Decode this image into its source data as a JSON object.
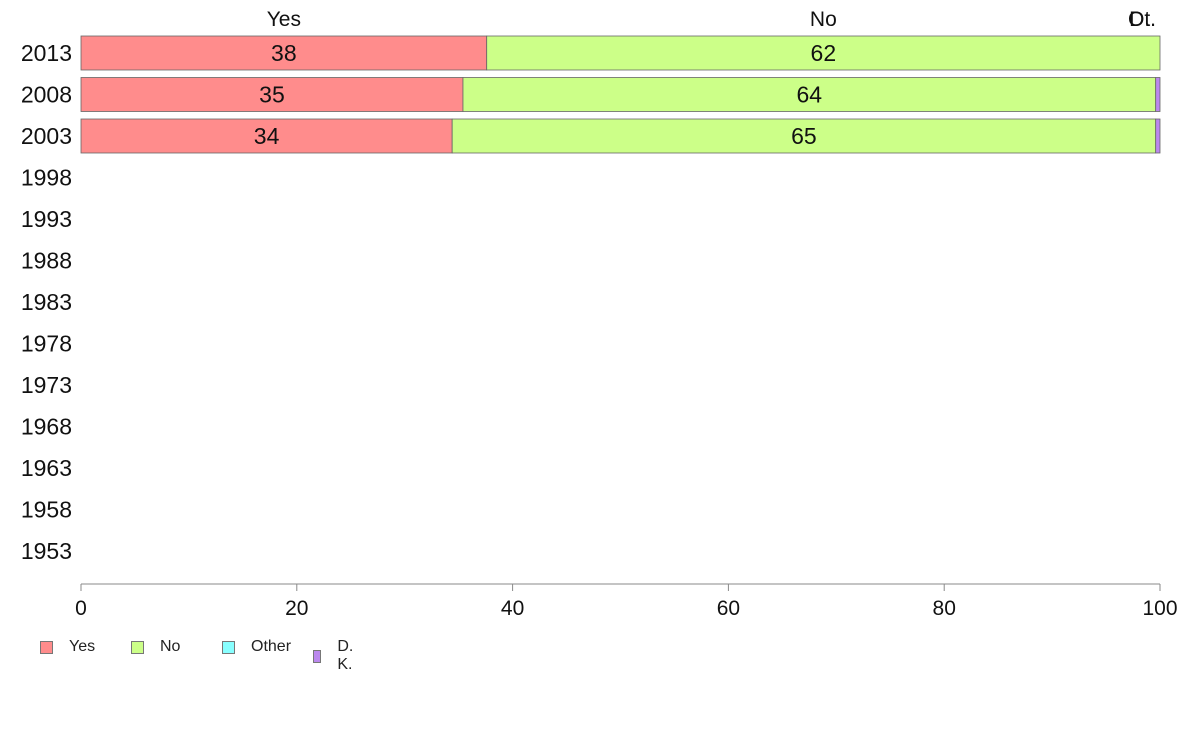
{
  "chart_data": {
    "type": "bar",
    "orientation": "horizontal",
    "stacked": true,
    "title": "",
    "xlabel": "",
    "ylabel": "",
    "xlim": [
      0,
      100
    ],
    "x_ticks": [
      "0",
      "20",
      "40",
      "60",
      "80",
      "100"
    ],
    "categories": [
      "2013",
      "2008",
      "2003",
      "1998",
      "1993",
      "1988",
      "1983",
      "1978",
      "1973",
      "1968",
      "1963",
      "1958",
      "1953"
    ],
    "series": [
      {
        "name": "Yes",
        "color": "#ff8c8c",
        "values": [
          37.6,
          35.4,
          34.4,
          null,
          null,
          null,
          null,
          null,
          null,
          null,
          null,
          null,
          null
        ],
        "labels": [
          "38",
          "35",
          "34"
        ]
      },
      {
        "name": "No",
        "color": "#ccff88",
        "values": [
          62.4,
          64.2,
          65.2,
          null,
          null,
          null,
          null,
          null,
          null,
          null,
          null,
          null,
          null
        ],
        "labels": [
          "62",
          "64",
          "65"
        ]
      },
      {
        "name": "Other",
        "color": "#88ffff",
        "values": [
          0,
          0,
          0,
          null,
          null,
          null,
          null,
          null,
          null,
          null,
          null,
          null,
          null
        ],
        "labels": []
      },
      {
        "name": "D. K.",
        "color": "#bb88ee",
        "values": [
          0,
          0.4,
          0.4,
          null,
          null,
          null,
          null,
          null,
          null,
          null,
          null,
          null,
          null
        ],
        "labels": []
      }
    ],
    "top_labels": [
      {
        "text": "Yes",
        "position": 18.8
      },
      {
        "text": "No",
        "position": 68.8
      },
      {
        "text": "Ot.",
        "position": 100
      },
      {
        "text": "D..",
        "position": 100
      }
    ],
    "legend": {
      "position": "bottom-left",
      "entries": [
        "Yes",
        "No",
        "Other",
        "D. K."
      ]
    },
    "grid": false
  }
}
